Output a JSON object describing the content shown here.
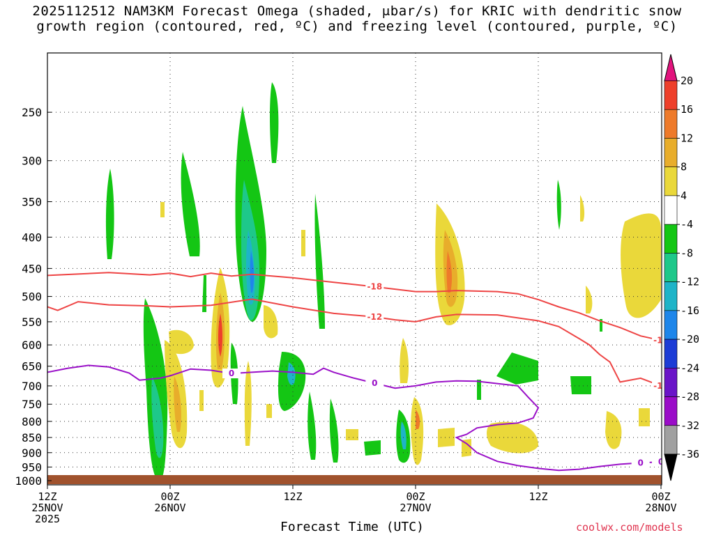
{
  "chart_data": {
    "type": "heatmap",
    "title_line1": "2025112512 NAM3KM Forecast Omega (shaded, μbar/s) for KRIC with dendritic snow",
    "title_line2": "growth region (contoured, red, ºC) and freezing level (contoured, purple, ºC)",
    "xlabel": "Forecast Time (UTC)",
    "credit": "coolwx.com/models",
    "x_ticks": [
      {
        "hour": 0,
        "line1": "12Z",
        "line2": "25NOV",
        "line3": "2025"
      },
      {
        "hour": 12,
        "line1": "00Z",
        "line2": "26NOV",
        "line3": ""
      },
      {
        "hour": 24,
        "line1": "12Z",
        "line2": "",
        "line3": ""
      },
      {
        "hour": 36,
        "line1": "00Z",
        "line2": "27NOV",
        "line3": ""
      },
      {
        "hour": 48,
        "line1": "12Z",
        "line2": "",
        "line3": ""
      },
      {
        "hour": 60,
        "line1": "00Z",
        "line2": "28NOV",
        "line3": ""
      }
    ],
    "x_range_hours": [
      0,
      60
    ],
    "y_levels": [
      250,
      300,
      350,
      400,
      450,
      500,
      550,
      600,
      650,
      700,
      750,
      800,
      850,
      900,
      950,
      1000
    ],
    "y_range_mb": [
      1000,
      200
    ],
    "colorbar": {
      "labels": [
        "20",
        "16",
        "12",
        "8",
        "4",
        "-4",
        "-8",
        "-12",
        "-16",
        "-20",
        "-24",
        "-28",
        "-32",
        "-36"
      ],
      "bins": [
        {
          "lo": 16,
          "hi": 20,
          "color": "#ee3f2a"
        },
        {
          "lo": 12,
          "hi": 16,
          "color": "#ee7a2a"
        },
        {
          "lo": 8,
          "hi": 12,
          "color": "#e8ad2b"
        },
        {
          "lo": 4,
          "hi": 8,
          "color": "#ead83a"
        },
        {
          "lo": -4,
          "hi": 4,
          "color": "#ffffff"
        },
        {
          "lo": -8,
          "hi": -4,
          "color": "#14c614"
        },
        {
          "lo": -12,
          "hi": -8,
          "color": "#1ec88a"
        },
        {
          "lo": -16,
          "hi": -12,
          "color": "#1eb4c8"
        },
        {
          "lo": -20,
          "hi": -16,
          "color": "#1e86ea"
        },
        {
          "lo": -24,
          "hi": -20,
          "color": "#1c3cd6"
        },
        {
          "lo": -28,
          "hi": -24,
          "color": "#6a14c8"
        },
        {
          "lo": -32,
          "hi": -28,
          "color": "#9a0cc8"
        },
        {
          "lo": -36,
          "hi": -32,
          "color": "#a0a0a0"
        }
      ],
      "top_color": "#e2137d",
      "bottom_color": "#000000"
    },
    "contours": [
      {
        "name": "isotherm -18C",
        "label": "-18",
        "color": "#ee4444",
        "points": [
          [
            0,
            462
          ],
          [
            6,
            457
          ],
          [
            10,
            461
          ],
          [
            12,
            458
          ],
          [
            14,
            464
          ],
          [
            16,
            458
          ],
          [
            18,
            463
          ],
          [
            20,
            460
          ],
          [
            24,
            466
          ],
          [
            28,
            474
          ],
          [
            32,
            482
          ],
          [
            36,
            491
          ],
          [
            38,
            491
          ],
          [
            40,
            489
          ],
          [
            44,
            491
          ],
          [
            46,
            495
          ],
          [
            48,
            506
          ],
          [
            50,
            520
          ],
          [
            52,
            532
          ],
          [
            54,
            548
          ],
          [
            56,
            562
          ],
          [
            58,
            580
          ],
          [
            60,
            590
          ]
        ]
      },
      {
        "name": "isotherm -12C",
        "label": "-12",
        "color": "#ee4444",
        "points": [
          [
            0,
            520
          ],
          [
            1,
            527
          ],
          [
            3,
            510
          ],
          [
            6,
            516
          ],
          [
            10,
            518
          ],
          [
            12,
            520
          ],
          [
            16,
            517
          ],
          [
            20,
            505
          ],
          [
            24,
            520
          ],
          [
            28,
            533
          ],
          [
            32,
            540
          ],
          [
            34,
            546
          ],
          [
            36,
            550
          ],
          [
            38,
            540
          ],
          [
            40,
            535
          ],
          [
            44,
            536
          ],
          [
            48,
            548
          ],
          [
            50,
            560
          ],
          [
            52,
            586
          ],
          [
            53,
            600
          ],
          [
            54,
            622
          ],
          [
            55,
            640
          ],
          [
            56,
            690
          ],
          [
            58,
            680
          ],
          [
            60,
            700
          ]
        ]
      },
      {
        "name": "freezing level 0C",
        "label": "0",
        "color": "#9a10c8",
        "points": [
          [
            0,
            665
          ],
          [
            2,
            655
          ],
          [
            4,
            648
          ],
          [
            6,
            652
          ],
          [
            8,
            667
          ],
          [
            9,
            685
          ],
          [
            11,
            680
          ],
          [
            12,
            674
          ],
          [
            14,
            657
          ],
          [
            16,
            660
          ],
          [
            18,
            668
          ],
          [
            20,
            665
          ],
          [
            22,
            662
          ],
          [
            24,
            665
          ],
          [
            26,
            670
          ],
          [
            27,
            655
          ],
          [
            28,
            665
          ],
          [
            30,
            680
          ],
          [
            32,
            693
          ],
          [
            34,
            706
          ],
          [
            36,
            700
          ],
          [
            38,
            690
          ],
          [
            40,
            687
          ],
          [
            42,
            688
          ],
          [
            44,
            694
          ],
          [
            46,
            700
          ],
          [
            47,
            730
          ],
          [
            48,
            760
          ],
          [
            47.5,
            790
          ],
          [
            46,
            805
          ],
          [
            44,
            810
          ],
          [
            42,
            820
          ],
          [
            41,
            840
          ],
          [
            40,
            850
          ],
          [
            41,
            870
          ],
          [
            42,
            900
          ],
          [
            44,
            930
          ],
          [
            46,
            945
          ],
          [
            48,
            955
          ],
          [
            50,
            962
          ],
          [
            52,
            958
          ],
          [
            54,
            948
          ],
          [
            56,
            940
          ],
          [
            58,
            935
          ],
          [
            60,
            932
          ]
        ]
      }
    ]
  }
}
